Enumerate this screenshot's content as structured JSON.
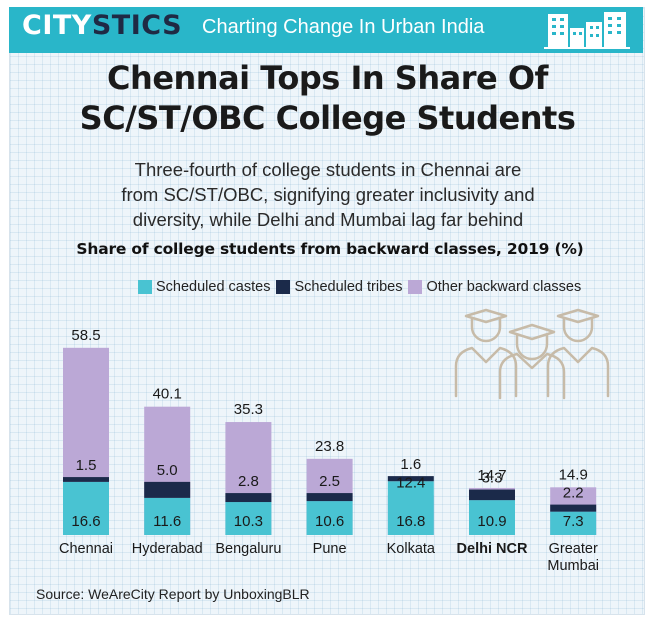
{
  "header": {
    "brand_part1": "CITY",
    "brand_part2": "STICS",
    "tagline": "Charting Change In Urban India"
  },
  "title_line1": "Chennai Tops In Share Of",
  "title_line2": "SC/ST/OBC College Students",
  "subtitle_line1": "Three-fourth of college students in Chennai are",
  "subtitle_line2": "from SC/ST/OBC, signifying greater inclusivity and",
  "subtitle_line3": "diversity, while Delhi and Mumbai lag far behind",
  "source": "Source: WeAreCity Report by UnboxingBLR",
  "colors": {
    "header_bg": "#29b6c9",
    "sc": "#49c3d2",
    "st": "#1b2a4a",
    "obc": "#bba8d6"
  },
  "icons": [
    "skyline-icon",
    "graduates-icon"
  ],
  "chart_data": {
    "type": "bar",
    "stacked": true,
    "title": "Share of college students from backward classes, 2019 (%)",
    "categories": [
      "Chennai",
      "Hyderabad",
      "Bengaluru",
      "Pune",
      "Kolkata",
      "Delhi NCR",
      "Greater Mumbai"
    ],
    "series": [
      {
        "name": "Scheduled castes",
        "values": [
          16.6,
          11.6,
          10.3,
          10.6,
          16.8,
          10.9,
          7.3
        ]
      },
      {
        "name": "Scheduled tribes",
        "values": [
          null,
          null,
          null,
          null,
          null,
          null,
          null
        ]
      },
      {
        "name": "Other backward classes",
        "values": [
          58.5,
          40.1,
          35.3,
          23.8,
          12.4,
          14.7,
          14.9
        ]
      }
    ],
    "st_labels": [
      1.5,
      5.0,
      2.8,
      2.5,
      1.6,
      3.3,
      2.2
    ],
    "st_label_text": [
      "1.5",
      "5.0",
      "2.8",
      "2.5",
      "1.6",
      "3.3",
      "2.2"
    ],
    "sc_label_text": [
      "16.6",
      "11.6",
      "10.3",
      "10.6",
      "16.8",
      "10.9",
      "7.3"
    ],
    "obc_label_text": [
      "58.5",
      "40.1",
      "35.3",
      "23.8",
      "12.4",
      "14.7",
      "14.9"
    ],
    "bold_category": "Delhi NCR",
    "legend_position": "top",
    "grid": false
  }
}
